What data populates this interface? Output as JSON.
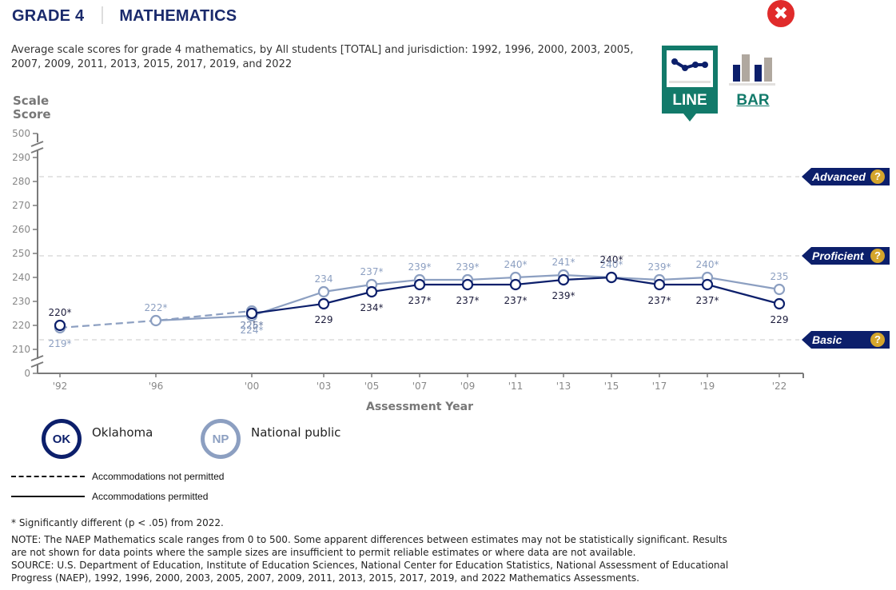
{
  "header": {
    "grade": "GRADE 4",
    "subject": "MATHEMATICS",
    "close_icon": "close-icon",
    "subtitle": "Average scale scores for grade 4 mathematics, by All students [TOTAL] and jurisdiction: 1992, 1996, 2000, 2003, 2005, 2007, 2009, 2011, 2013, 2015, 2017, 2019, and 2022"
  },
  "view_toggle": {
    "line_label": "LINE",
    "bar_label": "BAR",
    "selected": "LINE"
  },
  "colors": {
    "oklahoma": "#0c1f6b",
    "national_public": "#8c9fc1",
    "accent_teal": "#127a6a",
    "level_badge": "#0c1f6b",
    "help_icon": "#d4a52c",
    "close": "#e02b2b"
  },
  "achievement_levels": [
    {
      "name": "Advanced",
      "score": 282
    },
    {
      "name": "Proficient",
      "score": 249
    },
    {
      "name": "Basic",
      "score": 214
    }
  ],
  "legend": {
    "jurisdictions": [
      {
        "abbr": "OK",
        "name": "Oklahoma"
      },
      {
        "abbr": "NP",
        "name": "National public"
      }
    ],
    "line_styles": [
      {
        "style": "dashed",
        "label": "Accommodations not permitted"
      },
      {
        "style": "solid",
        "label": "Accommodations permitted"
      }
    ]
  },
  "notes": {
    "significance": "* Significantly different (p < .05) from 2022.",
    "note": "NOTE: The NAEP Mathematics scale ranges from 0 to 500. Some apparent differences between estimates may not be statistically significant. Results are not shown for data points where the sample sizes are insufficient to permit reliable estimates or where data are not available.",
    "source": "SOURCE: U.S. Department of Education, Institute of Education Sciences, National Center for Education Statistics, National Assessment of Educational Progress (NAEP), 1992, 1996, 2000, 2003, 2005, 2007, 2009, 2011, 2013, 2015, 2017, 2019, and 2022 Mathematics Assessments."
  },
  "chart_data": {
    "type": "line",
    "title": "Average scale scores for grade 4 mathematics",
    "xlabel": "Assessment Year",
    "ylabel": "Scale Score",
    "x_ticks": [
      1992,
      1996,
      2000,
      2003,
      2005,
      2007,
      2009,
      2011,
      2013,
      2015,
      2017,
      2019,
      2022
    ],
    "x_tick_labels": [
      "'92",
      "'96",
      "'00",
      "'03",
      "'05",
      "'07",
      "'09",
      "'11",
      "'13",
      "'15",
      "'17",
      "'19",
      "'22"
    ],
    "y_ticks": [
      0,
      210,
      220,
      230,
      240,
      250,
      260,
      270,
      280,
      290,
      500
    ],
    "y_broken_axis": {
      "visible_range": [
        210,
        290
      ],
      "extra_ticks": [
        0,
        500
      ]
    },
    "grid": false,
    "legend_position": "bottom-left",
    "series": [
      {
        "name": "Oklahoma",
        "abbr": "OK",
        "segments": [
          {
            "style": "dashed",
            "accommodations": "not permitted",
            "points": [
              {
                "year": 1992,
                "value": 220,
                "label": "220*"
              }
            ]
          },
          {
            "style": "solid",
            "accommodations": "permitted",
            "points": [
              {
                "year": 2000,
                "value": 225,
                "label": "225*"
              },
              {
                "year": 2003,
                "value": 229,
                "label": "229"
              },
              {
                "year": 2005,
                "value": 234,
                "label": "234*"
              },
              {
                "year": 2007,
                "value": 237,
                "label": "237*"
              },
              {
                "year": 2009,
                "value": 237,
                "label": "237*"
              },
              {
                "year": 2011,
                "value": 237,
                "label": "237*"
              },
              {
                "year": 2013,
                "value": 239,
                "label": "239*"
              },
              {
                "year": 2015,
                "value": 240,
                "label": "240*"
              },
              {
                "year": 2017,
                "value": 237,
                "label": "237*"
              },
              {
                "year": 2019,
                "value": 237,
                "label": "237*"
              },
              {
                "year": 2022,
                "value": 229,
                "label": "229"
              }
            ]
          }
        ]
      },
      {
        "name": "National public",
        "abbr": "NP",
        "segments": [
          {
            "style": "dashed",
            "accommodations": "not permitted",
            "points": [
              {
                "year": 1992,
                "value": 219,
                "label": "219*"
              },
              {
                "year": 1996,
                "value": 222,
                "label": "222*"
              },
              {
                "year": 2000,
                "value": 226,
                "label": "226*"
              }
            ]
          },
          {
            "style": "solid",
            "accommodations": "permitted",
            "points": [
              {
                "year": 1996,
                "value": 222,
                "label": ""
              },
              {
                "year": 2000,
                "value": 224,
                "label": "224*"
              },
              {
                "year": 2003,
                "value": 234,
                "label": "234"
              },
              {
                "year": 2005,
                "value": 237,
                "label": "237*"
              },
              {
                "year": 2007,
                "value": 239,
                "label": "239*"
              },
              {
                "year": 2009,
                "value": 239,
                "label": "239*"
              },
              {
                "year": 2011,
                "value": 240,
                "label": "240*"
              },
              {
                "year": 2013,
                "value": 241,
                "label": "241*"
              },
              {
                "year": 2015,
                "value": 240,
                "label": "240*"
              },
              {
                "year": 2017,
                "value": 239,
                "label": "239*"
              },
              {
                "year": 2019,
                "value": 240,
                "label": "240*"
              },
              {
                "year": 2022,
                "value": 235,
                "label": "235"
              }
            ]
          }
        ]
      }
    ]
  }
}
